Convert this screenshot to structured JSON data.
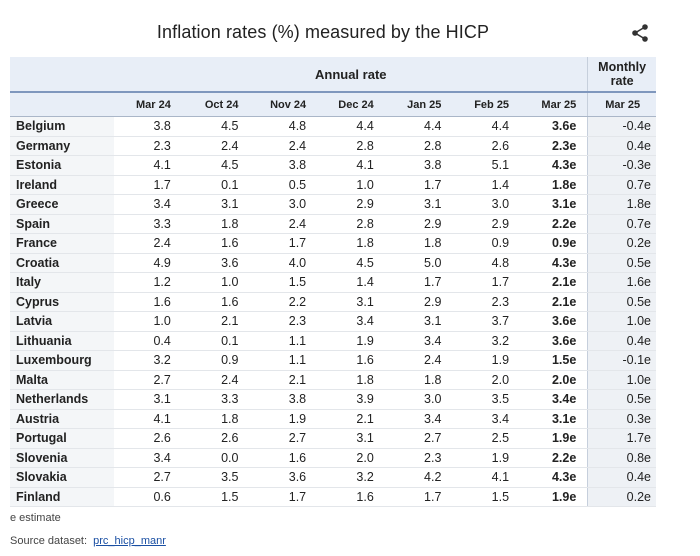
{
  "title": "Inflation rates (%) measured by the HICP",
  "share_icon": "share-icon",
  "header": {
    "annual": "Annual rate",
    "monthly": "Monthly rate",
    "columns": [
      "Mar 24",
      "Oct 24",
      "Nov 24",
      "Dec 24",
      "Jan 25",
      "Feb 25",
      "Mar 25",
      "Mar 25"
    ]
  },
  "rows": [
    {
      "country": "Belgium",
      "values": [
        "3.8",
        "4.5",
        "4.8",
        "4.4",
        "4.4",
        "4.4",
        "3.6e"
      ],
      "monthly": "-0.4e"
    },
    {
      "country": "Germany",
      "values": [
        "2.3",
        "2.4",
        "2.4",
        "2.8",
        "2.8",
        "2.6",
        "2.3e"
      ],
      "monthly": "0.4e"
    },
    {
      "country": "Estonia",
      "values": [
        "4.1",
        "4.5",
        "3.8",
        "4.1",
        "3.8",
        "5.1",
        "4.3e"
      ],
      "monthly": "-0.3e"
    },
    {
      "country": "Ireland",
      "values": [
        "1.7",
        "0.1",
        "0.5",
        "1.0",
        "1.7",
        "1.4",
        "1.8e"
      ],
      "monthly": "0.7e"
    },
    {
      "country": "Greece",
      "values": [
        "3.4",
        "3.1",
        "3.0",
        "2.9",
        "3.1",
        "3.0",
        "3.1e"
      ],
      "monthly": "1.8e"
    },
    {
      "country": "Spain",
      "values": [
        "3.3",
        "1.8",
        "2.4",
        "2.8",
        "2.9",
        "2.9",
        "2.2e"
      ],
      "monthly": "0.7e"
    },
    {
      "country": "France",
      "values": [
        "2.4",
        "1.6",
        "1.7",
        "1.8",
        "1.8",
        "0.9",
        "0.9e"
      ],
      "monthly": "0.2e"
    },
    {
      "country": "Croatia",
      "values": [
        "4.9",
        "3.6",
        "4.0",
        "4.5",
        "5.0",
        "4.8",
        "4.3e"
      ],
      "monthly": "0.5e"
    },
    {
      "country": "Italy",
      "values": [
        "1.2",
        "1.0",
        "1.5",
        "1.4",
        "1.7",
        "1.7",
        "2.1e"
      ],
      "monthly": "1.6e"
    },
    {
      "country": "Cyprus",
      "values": [
        "1.6",
        "1.6",
        "2.2",
        "3.1",
        "2.9",
        "2.3",
        "2.1e"
      ],
      "monthly": "0.5e"
    },
    {
      "country": "Latvia",
      "values": [
        "1.0",
        "2.1",
        "2.3",
        "3.4",
        "3.1",
        "3.7",
        "3.6e"
      ],
      "monthly": "1.0e"
    },
    {
      "country": "Lithuania",
      "values": [
        "0.4",
        "0.1",
        "1.1",
        "1.9",
        "3.4",
        "3.2",
        "3.6e"
      ],
      "monthly": "0.4e"
    },
    {
      "country": "Luxembourg",
      "values": [
        "3.2",
        "0.9",
        "1.1",
        "1.6",
        "2.4",
        "1.9",
        "1.5e"
      ],
      "monthly": "-0.1e"
    },
    {
      "country": "Malta",
      "values": [
        "2.7",
        "2.4",
        "2.1",
        "1.8",
        "1.8",
        "2.0",
        "2.0e"
      ],
      "monthly": "1.0e"
    },
    {
      "country": "Netherlands",
      "values": [
        "3.1",
        "3.3",
        "3.8",
        "3.9",
        "3.0",
        "3.5",
        "3.4e"
      ],
      "monthly": "0.5e"
    },
    {
      "country": "Austria",
      "values": [
        "4.1",
        "1.8",
        "1.9",
        "2.1",
        "3.4",
        "3.4",
        "3.1e"
      ],
      "monthly": "0.3e"
    },
    {
      "country": "Portugal",
      "values": [
        "2.6",
        "2.6",
        "2.7",
        "3.1",
        "2.7",
        "2.5",
        "1.9e"
      ],
      "monthly": "1.7e"
    },
    {
      "country": "Slovenia",
      "values": [
        "3.4",
        "0.0",
        "1.6",
        "2.0",
        "2.3",
        "1.9",
        "2.2e"
      ],
      "monthly": "0.8e"
    },
    {
      "country": "Slovakia",
      "values": [
        "2.7",
        "3.5",
        "3.6",
        "3.2",
        "4.2",
        "4.1",
        "4.3e"
      ],
      "monthly": "0.4e"
    },
    {
      "country": "Finland",
      "values": [
        "0.6",
        "1.5",
        "1.7",
        "1.6",
        "1.7",
        "1.5",
        "1.9e"
      ],
      "monthly": "0.2e"
    }
  ],
  "footer": {
    "note": "e estimate",
    "source_label": "Source dataset:",
    "source_link": "prc_hicp_manr"
  }
}
